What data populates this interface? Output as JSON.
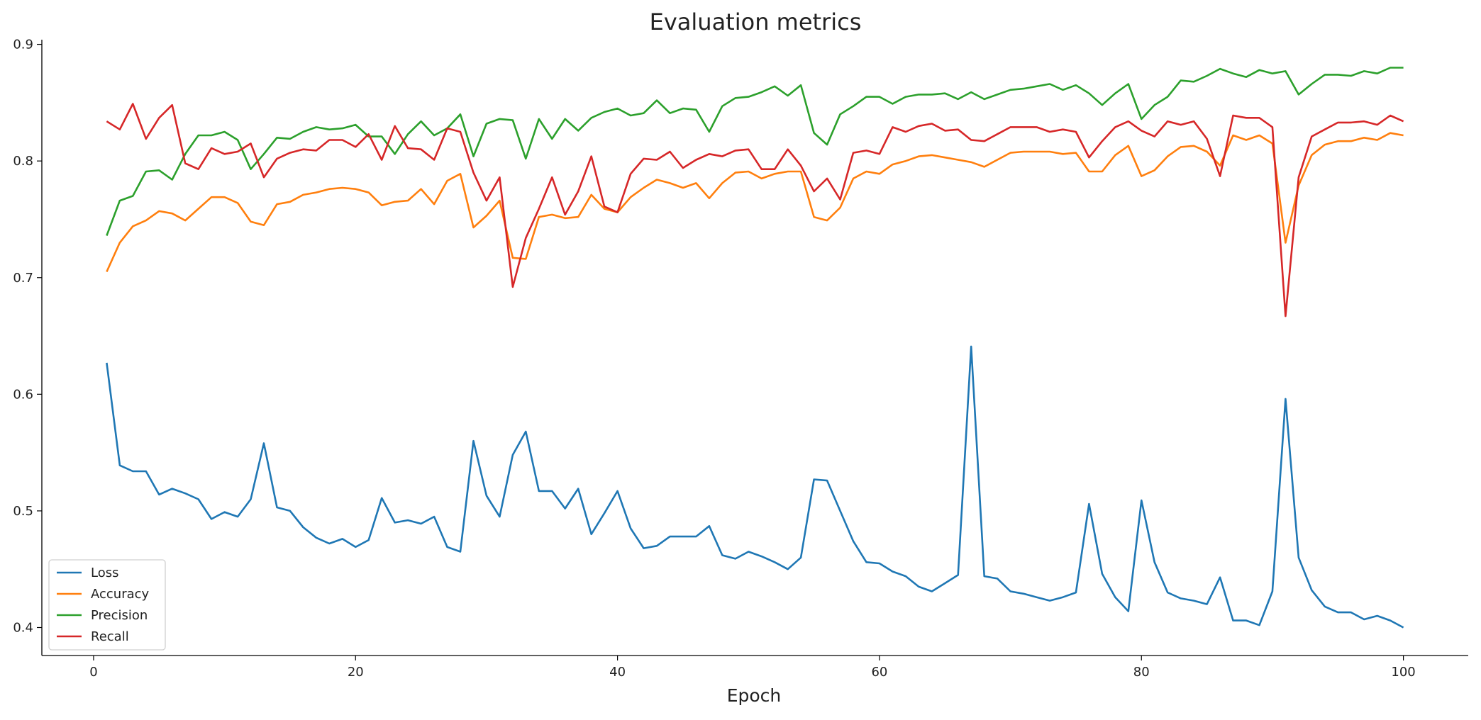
{
  "chart_data": {
    "type": "line",
    "title": "Evaluation metrics",
    "xlabel": "Epoch",
    "ylabel": "",
    "xlim": [
      -3.95,
      104.95
    ],
    "ylim": [
      0.376,
      0.904
    ],
    "xticks": [
      0,
      20,
      40,
      60,
      80,
      100
    ],
    "yticks": [
      0.4,
      0.5,
      0.6,
      0.7,
      0.8,
      0.9
    ],
    "grid": false,
    "legend_position": "bottom-left",
    "x_start": 1,
    "series": [
      {
        "name": "Loss",
        "color": "#1f77b4",
        "values": [
          0.627,
          0.539,
          0.534,
          0.534,
          0.514,
          0.519,
          0.515,
          0.51,
          0.493,
          0.499,
          0.495,
          0.51,
          0.558,
          0.503,
          0.5,
          0.486,
          0.477,
          0.472,
          0.476,
          0.469,
          0.475,
          0.511,
          0.49,
          0.492,
          0.489,
          0.495,
          0.469,
          0.465,
          0.56,
          0.513,
          0.495,
          0.548,
          0.568,
          0.517,
          0.517,
          0.502,
          0.519,
          0.48,
          0.498,
          0.517,
          0.485,
          0.468,
          0.47,
          0.478,
          0.478,
          0.478,
          0.487,
          0.462,
          0.459,
          0.465,
          0.461,
          0.456,
          0.45,
          0.46,
          0.527,
          0.526,
          0.5,
          0.474,
          0.456,
          0.455,
          0.448,
          0.444,
          0.435,
          0.431,
          0.438,
          0.445,
          0.641,
          0.444,
          0.442,
          0.431,
          0.429,
          0.426,
          0.423,
          0.426,
          0.43,
          0.506,
          0.446,
          0.426,
          0.414,
          0.509,
          0.456,
          0.43,
          0.425,
          0.423,
          0.42,
          0.443,
          0.406,
          0.406,
          0.402,
          0.431,
          0.596,
          0.46,
          0.432,
          0.418,
          0.413,
          0.413,
          0.407,
          0.41,
          0.406,
          0.4
        ]
      },
      {
        "name": "Accuracy",
        "color": "#ff7f0e",
        "values": [
          0.705,
          0.73,
          0.744,
          0.749,
          0.757,
          0.755,
          0.749,
          0.759,
          0.769,
          0.769,
          0.764,
          0.748,
          0.745,
          0.763,
          0.765,
          0.771,
          0.773,
          0.776,
          0.777,
          0.776,
          0.773,
          0.762,
          0.765,
          0.766,
          0.776,
          0.763,
          0.783,
          0.789,
          0.743,
          0.753,
          0.766,
          0.717,
          0.716,
          0.752,
          0.754,
          0.751,
          0.752,
          0.771,
          0.759,
          0.756,
          0.769,
          0.777,
          0.784,
          0.781,
          0.777,
          0.781,
          0.768,
          0.781,
          0.79,
          0.791,
          0.785,
          0.789,
          0.791,
          0.791,
          0.752,
          0.749,
          0.76,
          0.785,
          0.791,
          0.789,
          0.797,
          0.8,
          0.804,
          0.805,
          0.803,
          0.801,
          0.799,
          0.795,
          0.801,
          0.807,
          0.808,
          0.808,
          0.808,
          0.806,
          0.807,
          0.791,
          0.791,
          0.805,
          0.813,
          0.787,
          0.792,
          0.804,
          0.812,
          0.813,
          0.808,
          0.796,
          0.822,
          0.818,
          0.822,
          0.815,
          0.73,
          0.779,
          0.805,
          0.814,
          0.817,
          0.817,
          0.82,
          0.818,
          0.824,
          0.822
        ]
      },
      {
        "name": "Precision",
        "color": "#2ca02c",
        "values": [
          0.736,
          0.766,
          0.77,
          0.791,
          0.792,
          0.784,
          0.806,
          0.822,
          0.822,
          0.825,
          0.818,
          0.793,
          0.806,
          0.82,
          0.819,
          0.825,
          0.829,
          0.827,
          0.828,
          0.831,
          0.821,
          0.821,
          0.806,
          0.823,
          0.834,
          0.822,
          0.828,
          0.84,
          0.804,
          0.832,
          0.836,
          0.835,
          0.802,
          0.836,
          0.819,
          0.836,
          0.826,
          0.837,
          0.842,
          0.845,
          0.839,
          0.841,
          0.852,
          0.841,
          0.845,
          0.844,
          0.825,
          0.847,
          0.854,
          0.855,
          0.859,
          0.864,
          0.856,
          0.865,
          0.824,
          0.814,
          0.84,
          0.847,
          0.855,
          0.855,
          0.849,
          0.855,
          0.857,
          0.857,
          0.858,
          0.853,
          0.859,
          0.853,
          0.857,
          0.861,
          0.862,
          0.864,
          0.866,
          0.861,
          0.865,
          0.858,
          0.848,
          0.858,
          0.866,
          0.836,
          0.848,
          0.855,
          0.869,
          0.868,
          0.873,
          0.879,
          0.875,
          0.872,
          0.878,
          0.875,
          0.877,
          0.857,
          0.866,
          0.874,
          0.874,
          0.873,
          0.877,
          0.875,
          0.88,
          0.88
        ]
      },
      {
        "name": "Recall",
        "color": "#d62728",
        "values": [
          0.834,
          0.827,
          0.849,
          0.819,
          0.837,
          0.848,
          0.798,
          0.793,
          0.811,
          0.806,
          0.808,
          0.815,
          0.786,
          0.802,
          0.807,
          0.81,
          0.809,
          0.818,
          0.818,
          0.812,
          0.823,
          0.801,
          0.83,
          0.811,
          0.81,
          0.801,
          0.828,
          0.825,
          0.79,
          0.766,
          0.786,
          0.692,
          0.734,
          0.759,
          0.786,
          0.754,
          0.774,
          0.804,
          0.761,
          0.756,
          0.789,
          0.802,
          0.801,
          0.808,
          0.794,
          0.801,
          0.806,
          0.804,
          0.809,
          0.81,
          0.793,
          0.793,
          0.81,
          0.796,
          0.774,
          0.785,
          0.767,
          0.807,
          0.809,
          0.806,
          0.829,
          0.825,
          0.83,
          0.832,
          0.826,
          0.827,
          0.818,
          0.817,
          0.823,
          0.829,
          0.829,
          0.829,
          0.825,
          0.827,
          0.825,
          0.803,
          0.817,
          0.829,
          0.834,
          0.826,
          0.821,
          0.834,
          0.831,
          0.834,
          0.819,
          0.787,
          0.839,
          0.837,
          0.837,
          0.829,
          0.667,
          0.786,
          0.821,
          0.827,
          0.833,
          0.833,
          0.834,
          0.831,
          0.839,
          0.834
        ]
      }
    ]
  }
}
